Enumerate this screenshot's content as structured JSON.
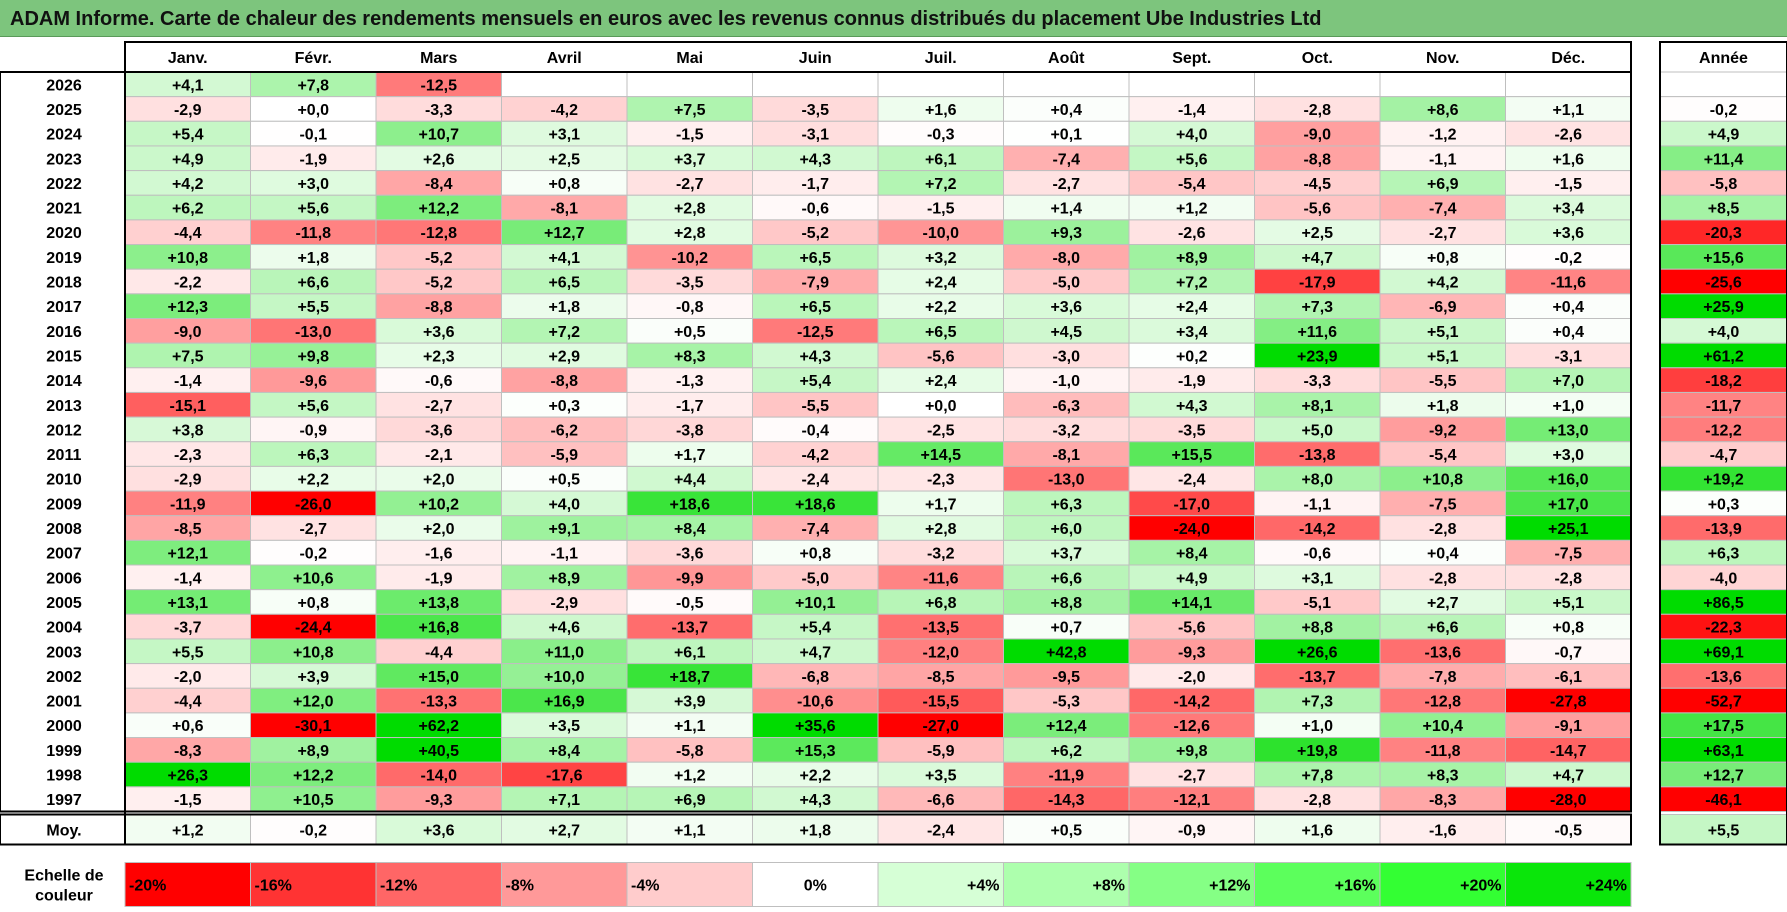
{
  "title": "ADAM Informe. Carte de chaleur des rendements mensuels en euros avec les revenus connus distribués du placement Ube Industries Ltd",
  "chart_data": {
    "type": "heatmap",
    "months": [
      "Janv.",
      "Févr.",
      "Mars",
      "Avril",
      "Mai",
      "Juin",
      "Juil.",
      "Août",
      "Sept.",
      "Oct.",
      "Nov.",
      "Déc."
    ],
    "year_label": "Année",
    "rows": [
      {
        "year": "2026",
        "values": [
          "+4,1",
          "+7,8",
          "-12,5",
          "",
          "",
          "",
          "",
          "",
          "",
          "",
          "",
          ""
        ],
        "annual": ""
      },
      {
        "year": "2025",
        "values": [
          "-2,9",
          "+0,0",
          "-3,3",
          "-4,2",
          "+7,5",
          "-3,5",
          "+1,6",
          "+0,4",
          "-1,4",
          "-2,8",
          "+8,6",
          "+1,1"
        ],
        "annual": "-0,2"
      },
      {
        "year": "2024",
        "values": [
          "+5,4",
          "-0,1",
          "+10,7",
          "+3,1",
          "-1,5",
          "-3,1",
          "-0,3",
          "+0,1",
          "+4,0",
          "-9,0",
          "-1,2",
          "-2,6"
        ],
        "annual": "+4,9"
      },
      {
        "year": "2023",
        "values": [
          "+4,9",
          "-1,9",
          "+2,6",
          "+2,5",
          "+3,7",
          "+4,3",
          "+6,1",
          "-7,4",
          "+5,6",
          "-8,8",
          "-1,1",
          "+1,6"
        ],
        "annual": "+11,4"
      },
      {
        "year": "2022",
        "values": [
          "+4,2",
          "+3,0",
          "-8,4",
          "+0,8",
          "-2,7",
          "-1,7",
          "+7,2",
          "-2,7",
          "-5,4",
          "-4,5",
          "+6,9",
          "-1,5"
        ],
        "annual": "-5,8"
      },
      {
        "year": "2021",
        "values": [
          "+6,2",
          "+5,6",
          "+12,2",
          "-8,1",
          "+2,8",
          "-0,6",
          "-1,5",
          "+1,4",
          "+1,2",
          "-5,6",
          "-7,4",
          "+3,4"
        ],
        "annual": "+8,5"
      },
      {
        "year": "2020",
        "values": [
          "-4,4",
          "-11,8",
          "-12,8",
          "+12,7",
          "+2,8",
          "-5,2",
          "-10,0",
          "+9,3",
          "-2,6",
          "+2,5",
          "-2,7",
          "+3,6"
        ],
        "annual": "-20,3"
      },
      {
        "year": "2019",
        "values": [
          "+10,8",
          "+1,8",
          "-5,2",
          "+4,1",
          "-10,2",
          "+6,5",
          "+3,2",
          "-8,0",
          "+8,9",
          "+4,7",
          "+0,8",
          "-0,2"
        ],
        "annual": "+15,6"
      },
      {
        "year": "2018",
        "values": [
          "-2,2",
          "+6,6",
          "-5,2",
          "+6,5",
          "-3,5",
          "-7,9",
          "+2,4",
          "-5,0",
          "+7,2",
          "-17,9",
          "+4,2",
          "-11,6"
        ],
        "annual": "-25,6"
      },
      {
        "year": "2017",
        "values": [
          "+12,3",
          "+5,5",
          "-8,8",
          "+1,8",
          "-0,8",
          "+6,5",
          "+2,2",
          "+3,6",
          "+2,4",
          "+7,3",
          "-6,9",
          "+0,4"
        ],
        "annual": "+25,9"
      },
      {
        "year": "2016",
        "values": [
          "-9,0",
          "-13,0",
          "+3,6",
          "+7,2",
          "+0,5",
          "-12,5",
          "+6,5",
          "+4,5",
          "+3,4",
          "+11,6",
          "+5,1",
          "+0,4"
        ],
        "annual": "+4,0"
      },
      {
        "year": "2015",
        "values": [
          "+7,5",
          "+9,8",
          "+2,3",
          "+2,9",
          "+8,3",
          "+4,3",
          "-5,6",
          "-3,0",
          "+0,2",
          "+23,9",
          "+5,1",
          "-3,1"
        ],
        "annual": "+61,2"
      },
      {
        "year": "2014",
        "values": [
          "-1,4",
          "-9,6",
          "-0,6",
          "-8,8",
          "-1,3",
          "+5,4",
          "+2,4",
          "-1,0",
          "-1,9",
          "-3,3",
          "-5,5",
          "+7,0"
        ],
        "annual": "-18,2"
      },
      {
        "year": "2013",
        "values": [
          "-15,1",
          "+5,6",
          "-2,7",
          "+0,3",
          "-1,7",
          "-5,5",
          "+0,0",
          "-6,3",
          "+4,3",
          "+8,1",
          "+1,8",
          "+1,0"
        ],
        "annual": "-11,7"
      },
      {
        "year": "2012",
        "values": [
          "+3,8",
          "-0,9",
          "-3,6",
          "-6,2",
          "-3,8",
          "-0,4",
          "-2,5",
          "-3,2",
          "-3,5",
          "+5,0",
          "-9,2",
          "+13,0"
        ],
        "annual": "-12,2"
      },
      {
        "year": "2011",
        "values": [
          "-2,3",
          "+6,3",
          "-2,1",
          "-5,9",
          "+1,7",
          "-4,2",
          "+14,5",
          "-8,1",
          "+15,5",
          "-13,8",
          "-5,4",
          "+3,0"
        ],
        "annual": "-4,7"
      },
      {
        "year": "2010",
        "values": [
          "-2,9",
          "+2,2",
          "+2,0",
          "+0,5",
          "+4,4",
          "-2,4",
          "-2,3",
          "-13,0",
          "-2,4",
          "+8,0",
          "+10,8",
          "+16,0"
        ],
        "annual": "+19,2"
      },
      {
        "year": "2009",
        "values": [
          "-11,9",
          "-26,0",
          "+10,2",
          "+4,0",
          "+18,6",
          "+18,6",
          "+1,7",
          "+6,3",
          "-17,0",
          "-1,1",
          "-7,5",
          "+17,0"
        ],
        "annual": "+0,3"
      },
      {
        "year": "2008",
        "values": [
          "-8,5",
          "-2,7",
          "+2,0",
          "+9,1",
          "+8,4",
          "-7,4",
          "+2,8",
          "+6,0",
          "-24,0",
          "-14,2",
          "-2,8",
          "+25,1"
        ],
        "annual": "-13,9"
      },
      {
        "year": "2007",
        "values": [
          "+12,1",
          "-0,2",
          "-1,6",
          "-1,1",
          "-3,6",
          "+0,8",
          "-3,2",
          "+3,7",
          "+8,4",
          "-0,6",
          "+0,4",
          "-7,5"
        ],
        "annual": "+6,3"
      },
      {
        "year": "2006",
        "values": [
          "-1,4",
          "+10,6",
          "-1,9",
          "+8,9",
          "-9,9",
          "-5,0",
          "-11,6",
          "+6,6",
          "+4,9",
          "+3,1",
          "-2,8",
          "-2,8"
        ],
        "annual": "-4,0"
      },
      {
        "year": "2005",
        "values": [
          "+13,1",
          "+0,8",
          "+13,8",
          "-2,9",
          "-0,5",
          "+10,1",
          "+6,8",
          "+8,8",
          "+14,1",
          "-5,1",
          "+2,7",
          "+5,1"
        ],
        "annual": "+86,5"
      },
      {
        "year": "2004",
        "values": [
          "-3,7",
          "-24,4",
          "+16,8",
          "+4,6",
          "-13,7",
          "+5,4",
          "-13,5",
          "+0,7",
          "-5,6",
          "+8,8",
          "+6,6",
          "+0,8"
        ],
        "annual": "-22,3"
      },
      {
        "year": "2003",
        "values": [
          "+5,5",
          "+10,8",
          "-4,4",
          "+11,0",
          "+6,1",
          "+4,7",
          "-12,0",
          "+42,8",
          "-9,3",
          "+26,6",
          "-13,6",
          "-0,7"
        ],
        "annual": "+69,1"
      },
      {
        "year": "2002",
        "values": [
          "-2,0",
          "+3,9",
          "+15,0",
          "+10,0",
          "+18,7",
          "-6,8",
          "-8,5",
          "-9,5",
          "-2,0",
          "-13,7",
          "-7,8",
          "-6,1"
        ],
        "annual": "-13,6"
      },
      {
        "year": "2001",
        "values": [
          "-4,4",
          "+12,0",
          "-13,3",
          "+16,9",
          "+3,9",
          "-10,6",
          "-15,5",
          "-5,3",
          "-14,2",
          "+7,3",
          "-12,8",
          "-27,8"
        ],
        "annual": "-52,7"
      },
      {
        "year": "2000",
        "values": [
          "+0,6",
          "-30,1",
          "+62,2",
          "+3,5",
          "+1,1",
          "+35,6",
          "-27,0",
          "+12,4",
          "-12,6",
          "+1,0",
          "+10,4",
          "-9,1"
        ],
        "annual": "+17,5"
      },
      {
        "year": "1999",
        "values": [
          "-8,3",
          "+8,9",
          "+40,5",
          "+8,4",
          "-5,8",
          "+15,3",
          "-5,9",
          "+6,2",
          "+9,8",
          "+19,8",
          "-11,8",
          "-14,7"
        ],
        "annual": "+63,1"
      },
      {
        "year": "1998",
        "values": [
          "+26,3",
          "+12,2",
          "-14,0",
          "-17,6",
          "+1,2",
          "+2,2",
          "+3,5",
          "-11,9",
          "-2,7",
          "+7,8",
          "+8,3",
          "+4,7"
        ],
        "annual": "+12,7"
      },
      {
        "year": "1997",
        "values": [
          "-1,5",
          "+10,5",
          "-9,3",
          "+7,1",
          "+6,9",
          "+4,3",
          "-6,6",
          "-14,3",
          "-12,1",
          "-2,8",
          "-8,3",
          "-28,0"
        ],
        "annual": "-46,1"
      }
    ],
    "average": {
      "label": "Moy.",
      "values": [
        "+1,2",
        "-0,2",
        "+3,6",
        "+2,7",
        "+1,1",
        "+1,8",
        "-2,4",
        "+0,5",
        "-0,9",
        "+1,6",
        "-1,6",
        "-0,5"
      ],
      "annual": "+5,5"
    },
    "legend": {
      "label_line1": "Echelle de",
      "label_line2": "couleur",
      "stops": [
        {
          "label": "-20%",
          "value": -20,
          "color": "#ff0000",
          "align": "left"
        },
        {
          "label": "-16%",
          "value": -16,
          "color": "#ff3333",
          "align": "left"
        },
        {
          "label": "-12%",
          "value": -12,
          "color": "#ff6666",
          "align": "left"
        },
        {
          "label": "-8%",
          "value": -8,
          "color": "#ff9999",
          "align": "left"
        },
        {
          "label": "-4%",
          "value": -4,
          "color": "#ffcccc",
          "align": "left"
        },
        {
          "label": "0%",
          "value": 0,
          "color": "#ffffff",
          "align": "center"
        },
        {
          "label": "+4%",
          "value": 4,
          "color": "#d6ffd6",
          "align": "right"
        },
        {
          "label": "+8%",
          "value": 8,
          "color": "#adffad",
          "align": "right"
        },
        {
          "label": "+12%",
          "value": 12,
          "color": "#85ff85",
          "align": "right"
        },
        {
          "label": "+16%",
          "value": 16,
          "color": "#5cff5c",
          "align": "right"
        },
        {
          "label": "+20%",
          "value": 20,
          "color": "#33ff33",
          "align": "right"
        },
        {
          "label": "+24%",
          "value": 24,
          "color": "#0ae60a",
          "align": "right"
        }
      ]
    },
    "colors": {
      "title_bar": "#7dc57d",
      "grid": "#bfbfbf",
      "frame": "#000000"
    }
  }
}
